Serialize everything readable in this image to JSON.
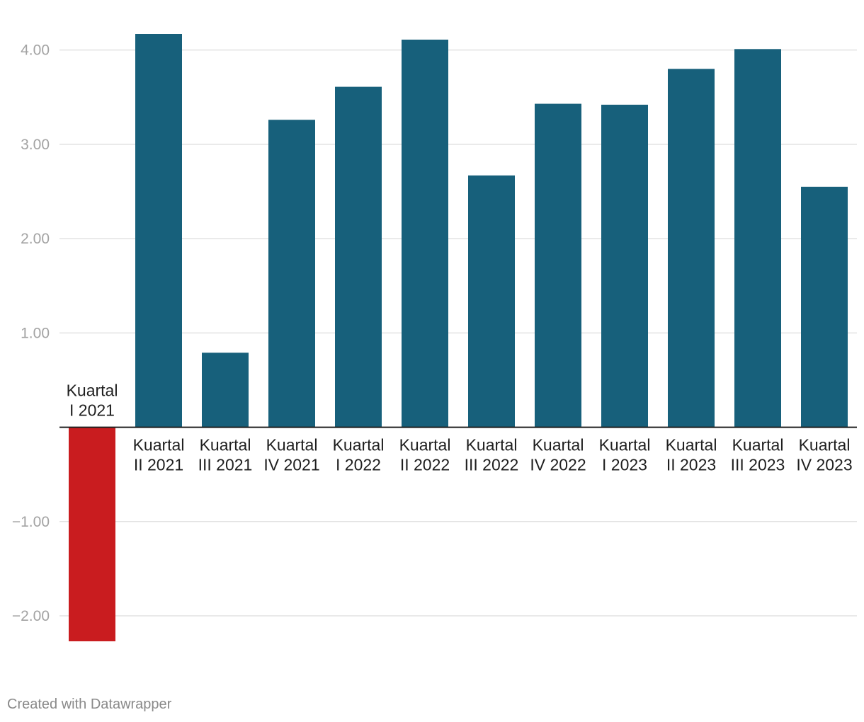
{
  "chart_data": {
    "type": "bar",
    "categories": [
      "Kuartal I 2021",
      "Kuartal II 2021",
      "Kuartal III 2021",
      "Kuartal IV 2021",
      "Kuartal I 2022",
      "Kuartal II 2022",
      "Kuartal III 2022",
      "Kuartal IV 2022",
      "Kuartal I 2023",
      "Kuartal II 2023",
      "Kuartal III 2023",
      "Kuartal IV 2023"
    ],
    "category_lines": [
      [
        "Kuartal",
        "I 2021"
      ],
      [
        "Kuartal",
        "II 2021"
      ],
      [
        "Kuartal",
        "III 2021"
      ],
      [
        "Kuartal",
        "IV 2021"
      ],
      [
        "Kuartal",
        "I 2022"
      ],
      [
        "Kuartal",
        "II 2022"
      ],
      [
        "Kuartal",
        "III 2022"
      ],
      [
        "Kuartal",
        "IV 2022"
      ],
      [
        "Kuartal",
        "I 2023"
      ],
      [
        "Kuartal",
        "II 2023"
      ],
      [
        "Kuartal",
        "III 2023"
      ],
      [
        "Kuartal",
        "IV 2023"
      ]
    ],
    "values": [
      -2.27,
      4.17,
      0.79,
      3.26,
      3.61,
      4.11,
      2.67,
      3.43,
      3.42,
      3.8,
      4.01,
      2.55
    ],
    "ylim": [
      -2.27,
      4.17
    ],
    "yticks": [
      -2,
      -1,
      1,
      2,
      3,
      4
    ],
    "ytick_labels": [
      "−2.00",
      "−1.00",
      "1.00",
      "2.00",
      "3.00",
      "4.00"
    ],
    "positive_color": "#17607b",
    "negative_color": "#c91c1f",
    "grid": true,
    "title": "",
    "xlabel": "",
    "ylabel": ""
  },
  "footer": {
    "credit": "Created with Datawrapper"
  }
}
